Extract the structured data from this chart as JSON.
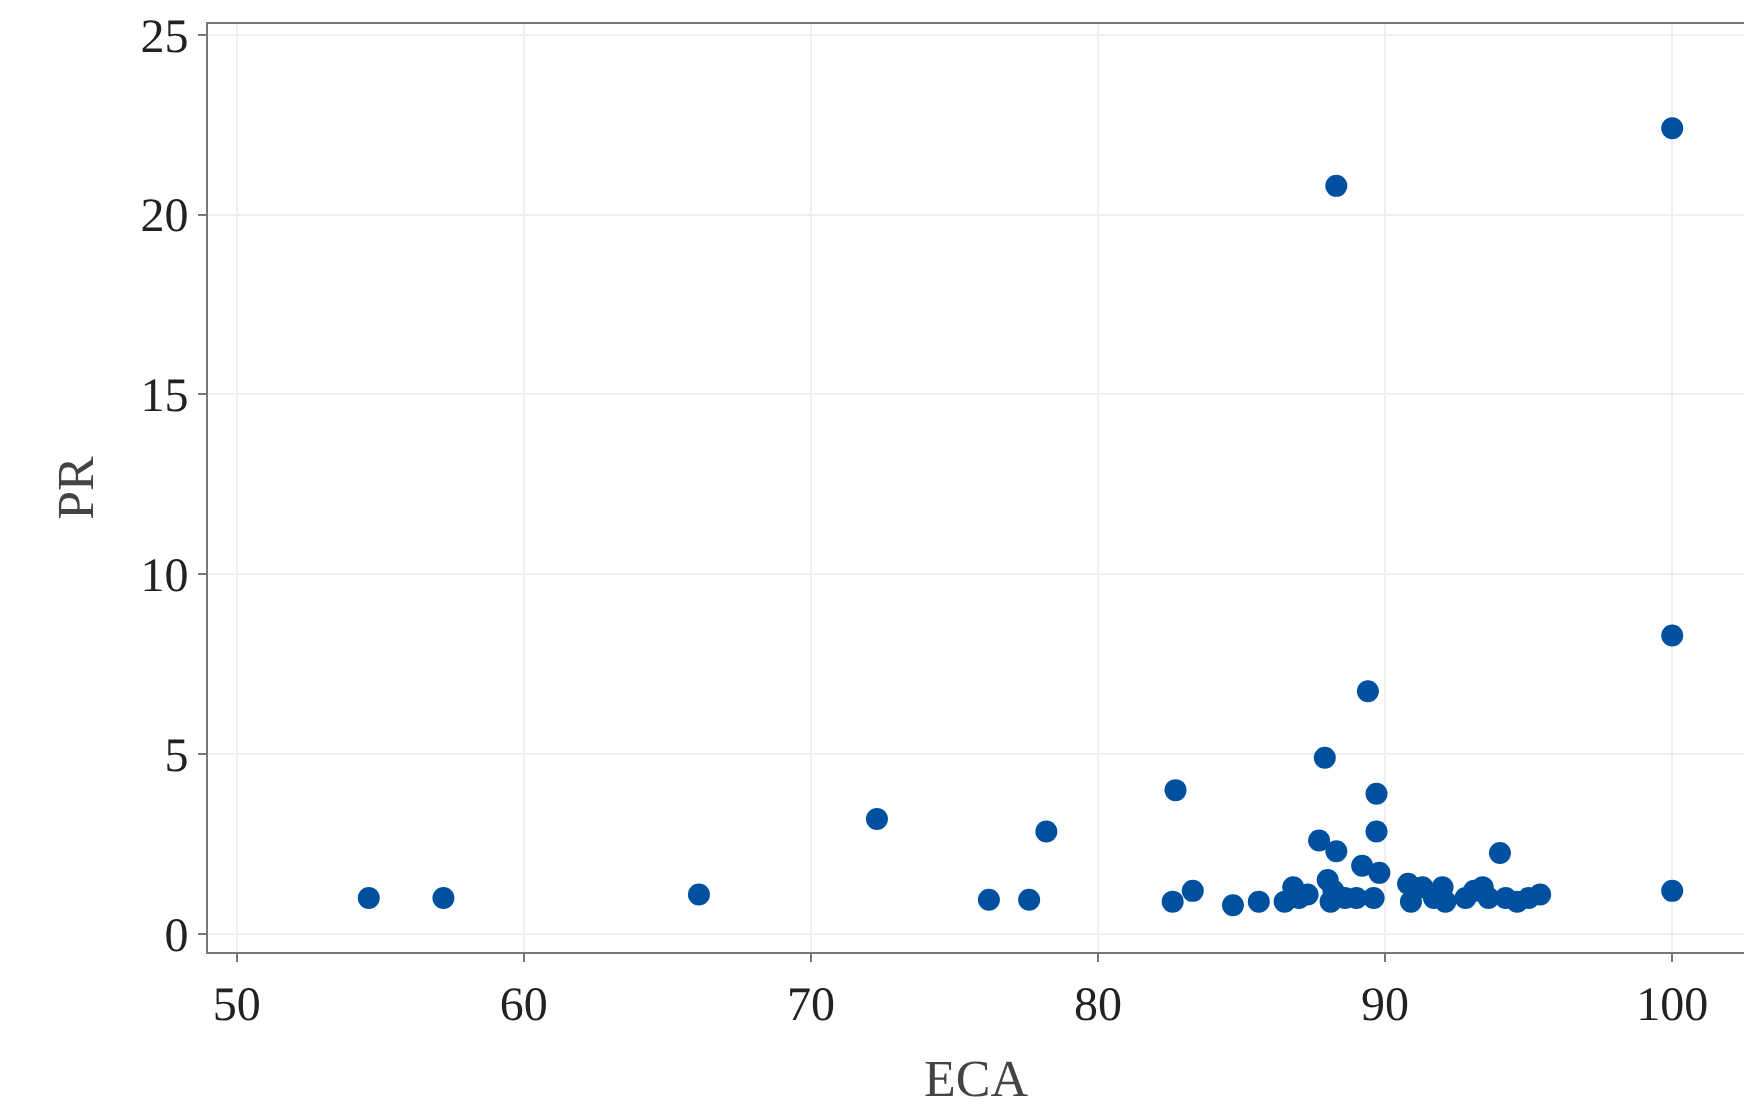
{
  "chart_data": {
    "type": "scatter",
    "xlabel": "ECA",
    "ylabel": "PR",
    "x": [
      54.6,
      57.2,
      66.1,
      72.3,
      76.2,
      77.6,
      78.2,
      82.6,
      82.7,
      83.3,
      84.7,
      85.6,
      86.5,
      86.8,
      87.0,
      87.3,
      87.6,
      87.7,
      87.9,
      88.0,
      88.1,
      88.2,
      88.3,
      88.3,
      88.6,
      89.0,
      89.2,
      89.4,
      89.6,
      89.7,
      89.7,
      89.8,
      90.8,
      90.9,
      91.3,
      91.7,
      92.0,
      92.1,
      92.8,
      93.1,
      93.4,
      93.6,
      94.0,
      94.2,
      94.6,
      95.0,
      95.4,
      100,
      100,
      100
    ],
    "series": [
      {
        "color": "#0050a0",
        "values": [
          1.0,
          1.0,
          1.1,
          3.2,
          0.95,
          0.95,
          2.85,
          0.9,
          4.0,
          1.2,
          0.8,
          0.9,
          0.9,
          1.3,
          1.0,
          1.1,
          null,
          2.6,
          4.9,
          1.5,
          0.9,
          1.2,
          20.8,
          2.3,
          1.0,
          1.0,
          1.9,
          6.75,
          1.0,
          3.9,
          2.85,
          1.7,
          1.4,
          0.9,
          1.3,
          1.0,
          1.3,
          0.9,
          1.0,
          1.2,
          1.3,
          1.0,
          2.25,
          1.0,
          0.9,
          1.0,
          1.1,
          22.4,
          8.3,
          1.2
        ]
      }
    ],
    "xlim": [
      49,
      102.5
    ],
    "xticks": [
      50,
      60,
      70,
      80,
      90,
      100
    ],
    "ylim": [
      -0.5,
      25.3
    ],
    "yticks": [
      0,
      5,
      10,
      15,
      20,
      25
    ],
    "grid": true,
    "marker": "circle",
    "legend": false
  }
}
